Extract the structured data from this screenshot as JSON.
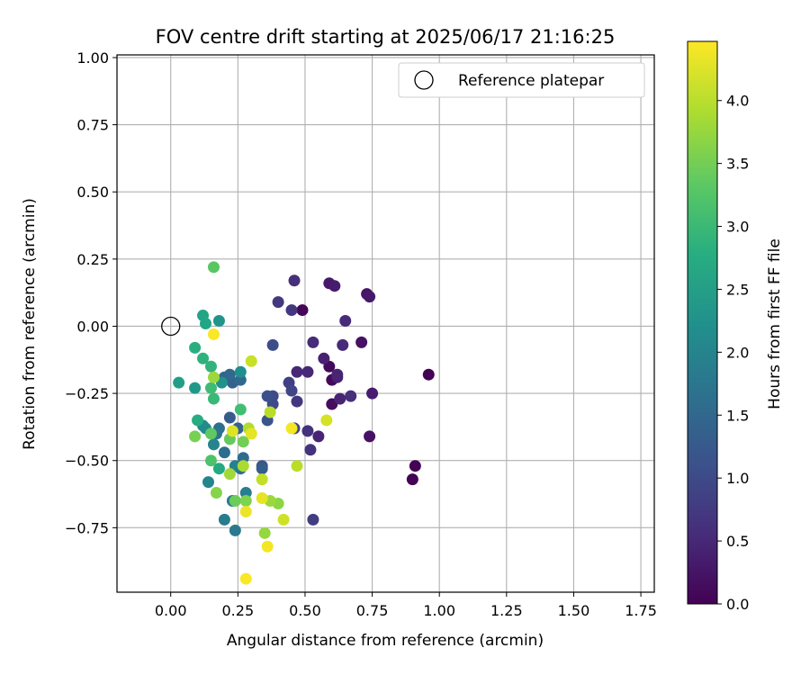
{
  "chart_data": {
    "type": "scatter",
    "title": "FOV centre drift starting at 2025/06/17 21:16:25",
    "xlabel": "Angular distance from reference (arcmin)",
    "ylabel": "Rotation from reference (arcmin)",
    "xlim": [
      -0.2,
      1.8
    ],
    "ylim": [
      -0.99,
      1.01
    ],
    "xticks": [
      0.0,
      0.25,
      0.5,
      0.75,
      1.0,
      1.25,
      1.5,
      1.75
    ],
    "xtick_labels": [
      "0.00",
      "0.25",
      "0.50",
      "0.75",
      "1.00",
      "1.25",
      "1.50",
      "1.75"
    ],
    "yticks": [
      -0.75,
      -0.5,
      -0.25,
      0.0,
      0.25,
      0.5,
      0.75,
      1.0
    ],
    "ytick_labels": [
      "−0.75",
      "−0.50",
      "−0.25",
      "0.00",
      "0.25",
      "0.50",
      "0.75",
      "1.00"
    ],
    "grid": true,
    "legend": {
      "placement": "top-right",
      "entries": [
        "Reference platepar"
      ]
    },
    "reference_point": {
      "x": 0.0,
      "y": 0.0
    },
    "colorbar": {
      "label": "Hours from first FF file",
      "colormap": "viridis",
      "range": [
        0.0,
        4.47
      ],
      "ticks": [
        0.0,
        0.5,
        1.0,
        1.5,
        2.0,
        2.5,
        3.0,
        3.5,
        4.0
      ],
      "tick_labels": [
        "0.0",
        "0.5",
        "1.0",
        "1.5",
        "2.0",
        "2.5",
        "3.0",
        "3.5",
        "4.0"
      ]
    },
    "points": [
      {
        "x": 0.96,
        "y": -0.18,
        "c": 0.02
      },
      {
        "x": 0.91,
        "y": -0.52,
        "c": 0.02
      },
      {
        "x": 0.9,
        "y": -0.57,
        "c": 0.02
      },
      {
        "x": 0.49,
        "y": 0.06,
        "c": 0.05
      },
      {
        "x": 0.59,
        "y": -0.15,
        "c": 0.1
      },
      {
        "x": 0.6,
        "y": -0.2,
        "c": 0.1
      },
      {
        "x": 0.6,
        "y": -0.29,
        "c": 0.15
      },
      {
        "x": 0.71,
        "y": -0.06,
        "c": 0.2
      },
      {
        "x": 0.74,
        "y": -0.41,
        "c": 0.2
      },
      {
        "x": 0.73,
        "y": 0.12,
        "c": 0.25
      },
      {
        "x": 0.74,
        "y": 0.11,
        "c": 0.3
      },
      {
        "x": 0.59,
        "y": 0.16,
        "c": 0.3
      },
      {
        "x": 0.61,
        "y": 0.15,
        "c": 0.35
      },
      {
        "x": 0.75,
        "y": -0.25,
        "c": 0.35
      },
      {
        "x": 0.57,
        "y": -0.12,
        "c": 0.4
      },
      {
        "x": 0.62,
        "y": -0.19,
        "c": 0.4
      },
      {
        "x": 0.62,
        "y": -0.18,
        "c": 0.45
      },
      {
        "x": 0.63,
        "y": -0.27,
        "c": 0.45
      },
      {
        "x": 0.55,
        "y": -0.41,
        "c": 0.45
      },
      {
        "x": 0.51,
        "y": -0.17,
        "c": 0.5
      },
      {
        "x": 0.47,
        "y": -0.17,
        "c": 0.5
      },
      {
        "x": 0.53,
        "y": -0.06,
        "c": 0.55
      },
      {
        "x": 0.64,
        "y": -0.07,
        "c": 0.55
      },
      {
        "x": 0.65,
        "y": 0.02,
        "c": 0.55
      },
      {
        "x": 0.67,
        "y": -0.26,
        "c": 0.6
      },
      {
        "x": 0.46,
        "y": 0.17,
        "c": 0.6
      },
      {
        "x": 0.52,
        "y": -0.46,
        "c": 0.65
      },
      {
        "x": 0.51,
        "y": -0.39,
        "c": 0.65
      },
      {
        "x": 0.47,
        "y": -0.28,
        "c": 0.7
      },
      {
        "x": 0.45,
        "y": 0.06,
        "c": 0.7
      },
      {
        "x": 0.4,
        "y": 0.09,
        "c": 0.75
      },
      {
        "x": 0.53,
        "y": -0.72,
        "c": 0.8
      },
      {
        "x": 0.44,
        "y": -0.21,
        "c": 0.85
      },
      {
        "x": 0.45,
        "y": -0.24,
        "c": 0.9
      },
      {
        "x": 0.46,
        "y": -0.38,
        "c": 0.95
      },
      {
        "x": 0.38,
        "y": -0.26,
        "c": 1.0
      },
      {
        "x": 0.38,
        "y": -0.29,
        "c": 1.0
      },
      {
        "x": 0.38,
        "y": -0.07,
        "c": 1.05
      },
      {
        "x": 0.36,
        "y": -0.26,
        "c": 1.1
      },
      {
        "x": 0.36,
        "y": -0.35,
        "c": 1.15
      },
      {
        "x": 0.34,
        "y": -0.52,
        "c": 1.2
      },
      {
        "x": 0.34,
        "y": -0.53,
        "c": 1.3
      },
      {
        "x": 0.22,
        "y": -0.34,
        "c": 1.3
      },
      {
        "x": 0.25,
        "y": -0.38,
        "c": 1.4
      },
      {
        "x": 0.23,
        "y": -0.21,
        "c": 1.4
      },
      {
        "x": 0.2,
        "y": -0.19,
        "c": 1.45
      },
      {
        "x": 0.22,
        "y": -0.18,
        "c": 1.5
      },
      {
        "x": 0.26,
        "y": -0.2,
        "c": 1.5
      },
      {
        "x": 0.27,
        "y": -0.49,
        "c": 1.55
      },
      {
        "x": 0.26,
        "y": -0.53,
        "c": 1.6
      },
      {
        "x": 0.2,
        "y": -0.47,
        "c": 1.6
      },
      {
        "x": 0.18,
        "y": -0.38,
        "c": 1.65
      },
      {
        "x": 0.17,
        "y": -0.4,
        "c": 1.7
      },
      {
        "x": 0.24,
        "y": -0.76,
        "c": 1.8
      },
      {
        "x": 0.2,
        "y": -0.72,
        "c": 1.85
      },
      {
        "x": 0.28,
        "y": -0.62,
        "c": 1.9
      },
      {
        "x": 0.23,
        "y": -0.65,
        "c": 1.9
      },
      {
        "x": 0.24,
        "y": -0.52,
        "c": 1.95
      },
      {
        "x": 0.16,
        "y": -0.44,
        "c": 2.0
      },
      {
        "x": 0.14,
        "y": -0.58,
        "c": 2.05
      },
      {
        "x": 0.12,
        "y": -0.37,
        "c": 2.1
      },
      {
        "x": 0.13,
        "y": -0.38,
        "c": 2.15
      },
      {
        "x": 0.26,
        "y": -0.17,
        "c": 2.2
      },
      {
        "x": 0.19,
        "y": -0.21,
        "c": 2.25
      },
      {
        "x": 0.18,
        "y": 0.02,
        "c": 2.3
      },
      {
        "x": 0.09,
        "y": -0.23,
        "c": 2.4
      },
      {
        "x": 0.03,
        "y": -0.21,
        "c": 2.5
      },
      {
        "x": 0.12,
        "y": 0.04,
        "c": 2.6
      },
      {
        "x": 0.13,
        "y": 0.01,
        "c": 2.65
      },
      {
        "x": 0.18,
        "y": -0.53,
        "c": 2.7
      },
      {
        "x": 0.1,
        "y": -0.35,
        "c": 2.75
      },
      {
        "x": 0.09,
        "y": -0.08,
        "c": 2.8
      },
      {
        "x": 0.12,
        "y": -0.12,
        "c": 2.85
      },
      {
        "x": 0.15,
        "y": -0.15,
        "c": 2.9
      },
      {
        "x": 0.16,
        "y": -0.27,
        "c": 3.0
      },
      {
        "x": 0.15,
        "y": -0.23,
        "c": 3.05
      },
      {
        "x": 0.26,
        "y": -0.31,
        "c": 3.1
      },
      {
        "x": 0.15,
        "y": -0.5,
        "c": 3.2
      },
      {
        "x": 0.16,
        "y": 0.22,
        "c": 3.3
      },
      {
        "x": 0.15,
        "y": -0.4,
        "c": 3.35
      },
      {
        "x": 0.22,
        "y": -0.42,
        "c": 3.4
      },
      {
        "x": 0.24,
        "y": -0.65,
        "c": 3.45
      },
      {
        "x": 0.27,
        "y": -0.43,
        "c": 3.5
      },
      {
        "x": 0.09,
        "y": -0.41,
        "c": 3.55
      },
      {
        "x": 0.28,
        "y": -0.65,
        "c": 3.6
      },
      {
        "x": 0.17,
        "y": -0.62,
        "c": 3.65
      },
      {
        "x": 0.4,
        "y": -0.66,
        "c": 3.7
      },
      {
        "x": 0.35,
        "y": -0.77,
        "c": 3.75
      },
      {
        "x": 0.16,
        "y": -0.19,
        "c": 3.8
      },
      {
        "x": 0.37,
        "y": -0.65,
        "c": 3.8
      },
      {
        "x": 0.22,
        "y": -0.55,
        "c": 3.85
      },
      {
        "x": 0.27,
        "y": -0.52,
        "c": 3.9
      },
      {
        "x": 0.29,
        "y": -0.38,
        "c": 3.95
      },
      {
        "x": 0.37,
        "y": -0.32,
        "c": 4.0
      },
      {
        "x": 0.47,
        "y": -0.52,
        "c": 4.0
      },
      {
        "x": 0.34,
        "y": -0.57,
        "c": 4.05
      },
      {
        "x": 0.3,
        "y": -0.13,
        "c": 4.1
      },
      {
        "x": 0.42,
        "y": -0.72,
        "c": 4.15
      },
      {
        "x": 0.58,
        "y": -0.35,
        "c": 4.2
      },
      {
        "x": 0.23,
        "y": -0.39,
        "c": 4.25
      },
      {
        "x": 0.34,
        "y": -0.64,
        "c": 4.3
      },
      {
        "x": 0.3,
        "y": -0.4,
        "c": 4.3
      },
      {
        "x": 0.28,
        "y": -0.69,
        "c": 4.35
      },
      {
        "x": 0.45,
        "y": -0.38,
        "c": 4.4
      },
      {
        "x": 0.36,
        "y": -0.82,
        "c": 4.4
      },
      {
        "x": 0.28,
        "y": -0.94,
        "c": 4.45
      },
      {
        "x": 0.16,
        "y": -0.03,
        "c": 4.45
      }
    ]
  }
}
